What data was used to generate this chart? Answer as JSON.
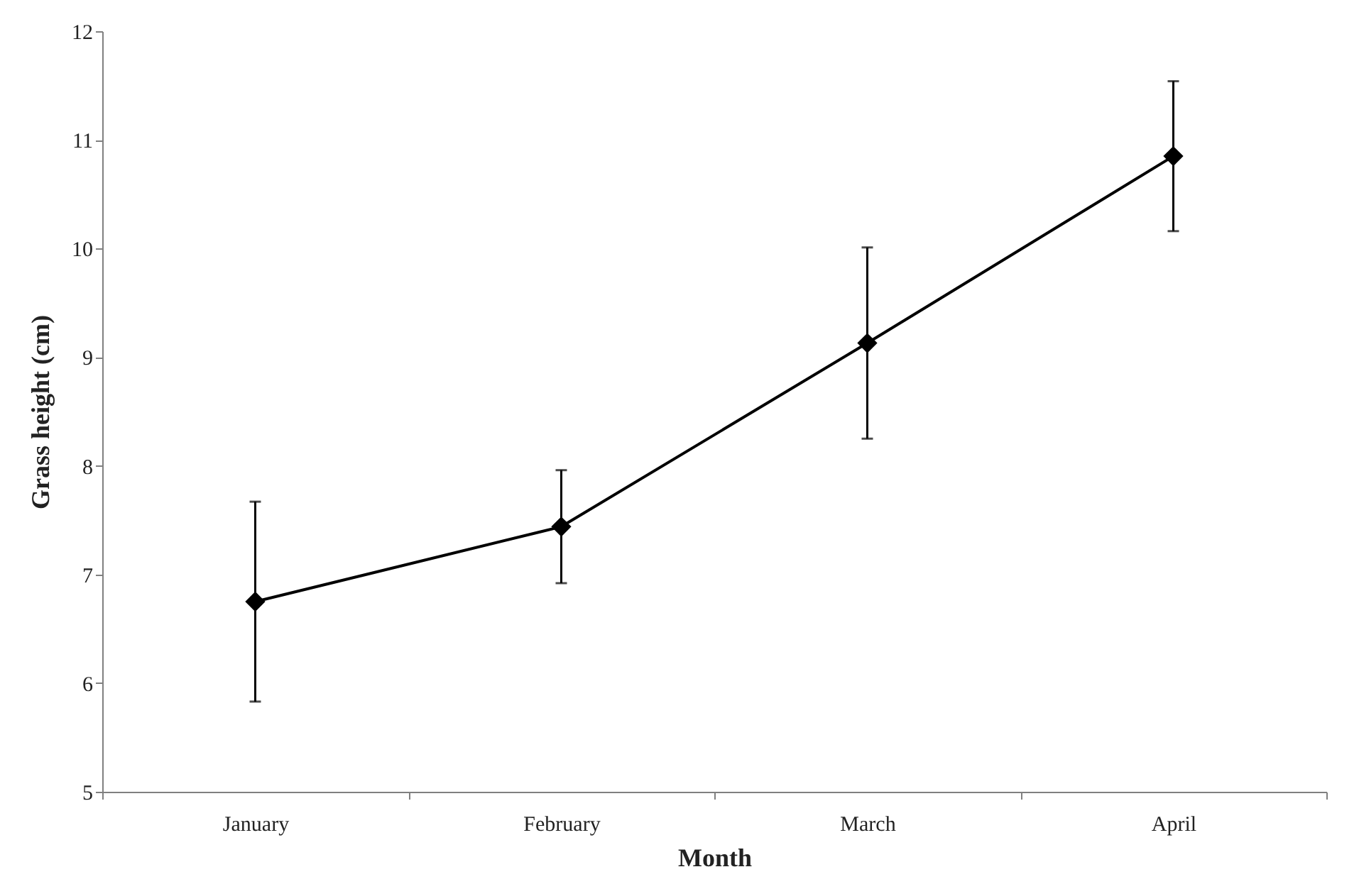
{
  "chart_data": {
    "type": "line",
    "xlabel": "Month",
    "ylabel": "Grass height (cm)",
    "categories": [
      "January",
      "February",
      "March",
      "April"
    ],
    "series": [
      {
        "color": "#000000",
        "values": [
          6.75,
          7.44,
          9.13,
          10.85
        ],
        "errors": [
          0.92,
          0.52,
          0.88,
          0.69
        ]
      }
    ],
    "ylim": [
      5,
      12
    ],
    "yticks": [
      5,
      6,
      7,
      8,
      9,
      10,
      11,
      12
    ],
    "grid": false,
    "marker": "diamond",
    "line_style": "solid"
  }
}
